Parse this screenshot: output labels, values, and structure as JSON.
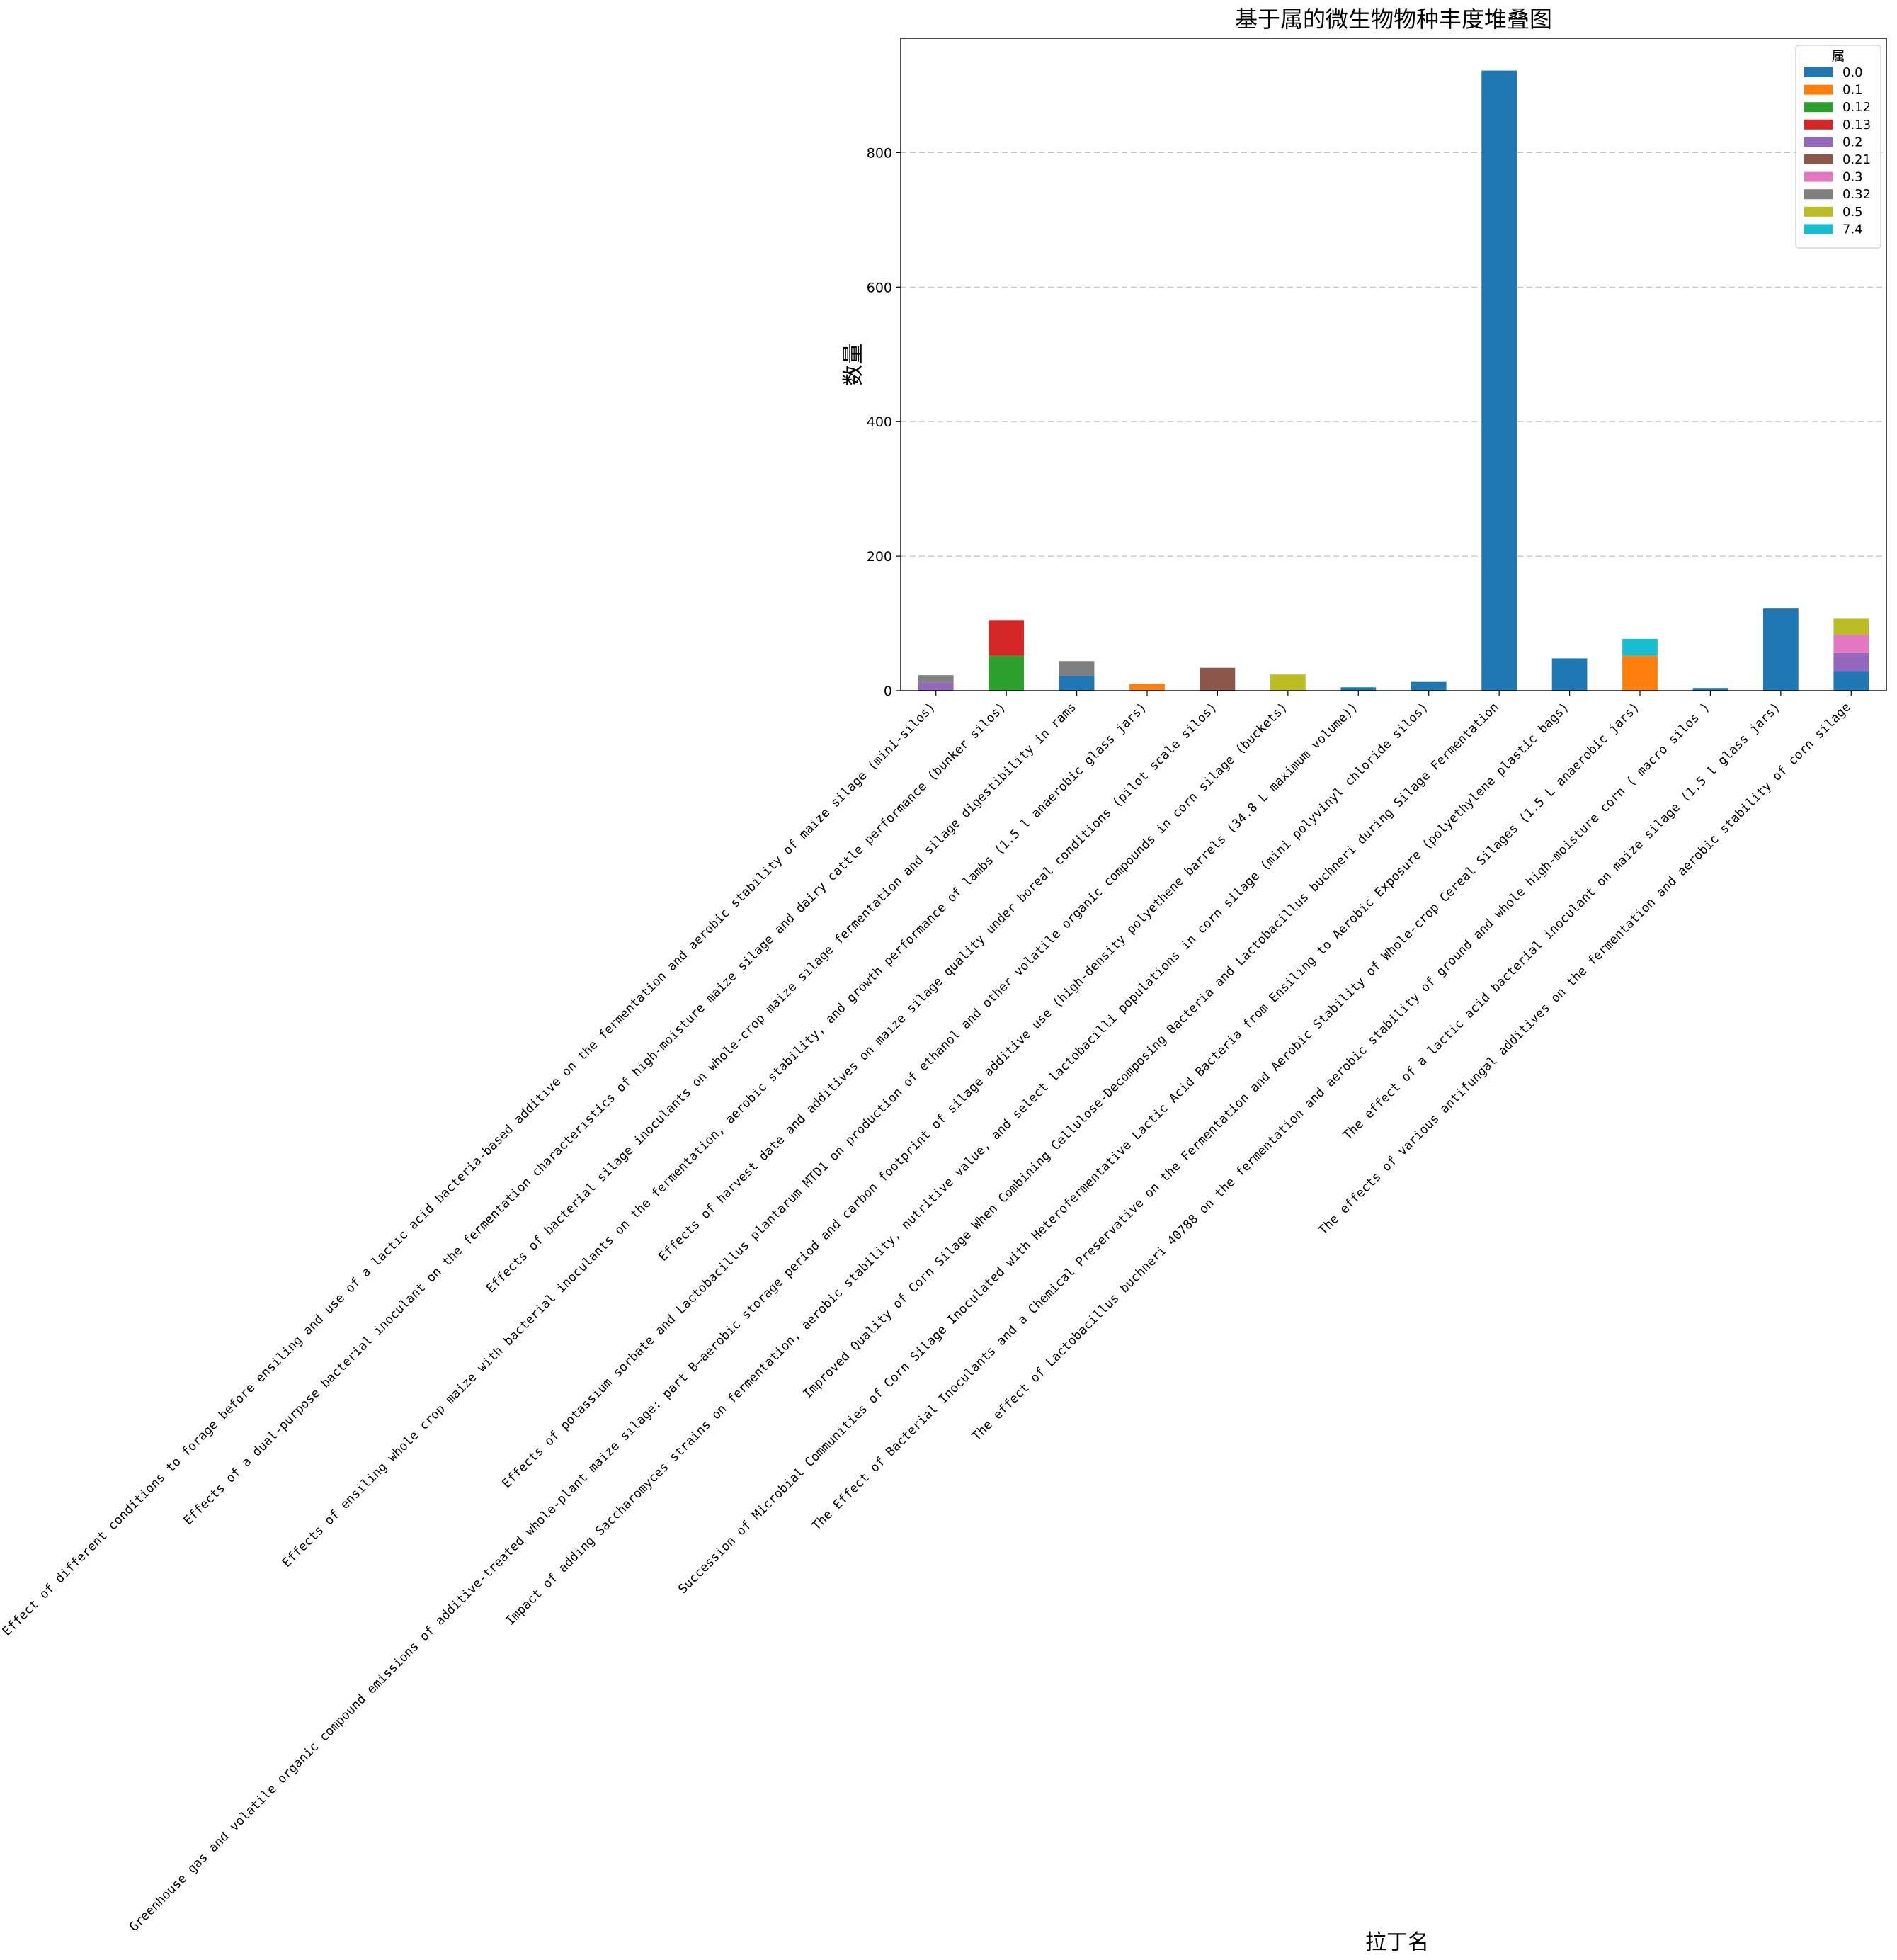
{
  "chart_data": {
    "type": "bar",
    "stacked": true,
    "title": "基于属的微生物物种丰度堆叠图",
    "xlabel": "拉丁名",
    "ylabel": "数量",
    "ylim": [
      0,
      970
    ],
    "yticks": [
      0,
      200,
      400,
      600,
      800
    ],
    "grid": "y-dashed",
    "legend_position": "top-right",
    "legend_title": "属",
    "categories": [
      "Effect of different conditions to forage before ensiling and use of a lactic acid bacteria-based additive on the fermentation and aerobic stability of maize silage (mini-silos)",
      "Effects of a dual-purpose bacterial inoculant on the fermentation characteristics of high-moisture maize silage and dairy cattle performance (bunker silos)",
      "Effects of bacterial silage inoculants on whole-crop maize silage fermentation and silage digestibility in rams",
      "Effects of ensiling whole crop maize with bacterial inoculants on the fermentation, aerobic stability, and growth performance of lambs (1.5 l anaerobic glass jars)",
      "Effects of harvest date and additives on maize silage quality under boreal conditions (pilot scale silos)",
      "Effects of potassium sorbate and Lactobacillus plantarum MTD1 on production of ethanol and other volatile organic compounds in corn silage (buckets)",
      "Greenhouse gas and volatile organic compound emissions of additive-treated whole-plant maize silage: part B—aerobic storage period and carbon footprint of silage additive use (high-density polyethene barrels (34.8 L maximum volume))",
      "Impact of adding Saccharomyces strains on fermentation, aerobic stability, nutritive value, and select lactobacilli populations in corn silage (mini polyvinyl chloride silos)",
      "Improved Quality of Corn Silage When Combining Cellulose-Decomposing Bacteria and Lactobacillus buchneri during Silage Fermentation",
      "Succession of Microbial Communities of Corn Silage Inoculated with Heterofermentative Lactic Acid Bacteria from Ensiling to Aerobic Exposure (polyethylene plastic bags)",
      "The Effect of Bacterial Inoculants and a Chemical Preservative on the Fermentation and Aerobic Stability of Whole-crop Cereal Silages (1.5 L anaerobic jars)",
      "The effect of Lactobacillus buchneri 40788 on the fermentation and aerobic stability of ground and whole high-moisture corn ( macro silos )",
      "The effect of a lactic acid bacterial inoculant on maize silage (1.5 l glass jars)",
      "The effects of various antifungal additives on the fermentation and aerobic stability of corn silage"
    ],
    "series": [
      {
        "name": "0.0",
        "color": "#1f77b4",
        "values": [
          0,
          0,
          22,
          0,
          0,
          0,
          5,
          13,
          922,
          48,
          0,
          4,
          122,
          29
        ]
      },
      {
        "name": "0.1",
        "color": "#ff7f0e",
        "values": [
          0,
          0,
          0,
          10,
          0,
          0,
          0,
          0,
          0,
          0,
          52,
          0,
          0,
          0
        ]
      },
      {
        "name": "0.12",
        "color": "#2ca02c",
        "values": [
          0,
          52,
          0,
          0,
          0,
          0,
          0,
          0,
          0,
          0,
          0,
          0,
          0,
          0
        ]
      },
      {
        "name": "0.13",
        "color": "#d62728",
        "values": [
          0,
          53,
          0,
          0,
          0,
          0,
          0,
          0,
          0,
          0,
          0,
          0,
          0,
          0
        ]
      },
      {
        "name": "0.2",
        "color": "#9467bd",
        "values": [
          12,
          0,
          0,
          0,
          0,
          0,
          0,
          0,
          0,
          0,
          0,
          0,
          0,
          27
        ]
      },
      {
        "name": "0.21",
        "color": "#8c564b",
        "values": [
          0,
          0,
          0,
          0,
          34,
          0,
          0,
          0,
          0,
          0,
          0,
          0,
          0,
          0
        ]
      },
      {
        "name": "0.3",
        "color": "#e377c2",
        "values": [
          0,
          0,
          0,
          0,
          0,
          0,
          0,
          0,
          0,
          0,
          0,
          0,
          0,
          27
        ]
      },
      {
        "name": "0.32",
        "color": "#7f7f7f",
        "values": [
          11,
          0,
          22,
          0,
          0,
          0,
          0,
          0,
          0,
          0,
          0,
          0,
          0,
          0
        ]
      },
      {
        "name": "0.5",
        "color": "#bcbd22",
        "values": [
          0,
          0,
          0,
          0,
          0,
          24,
          0,
          0,
          0,
          0,
          0,
          0,
          0,
          24
        ]
      },
      {
        "name": "7.4",
        "color": "#17becf",
        "values": [
          0,
          0,
          0,
          0,
          0,
          0,
          0,
          0,
          0,
          0,
          25,
          0,
          0,
          0
        ]
      }
    ]
  }
}
